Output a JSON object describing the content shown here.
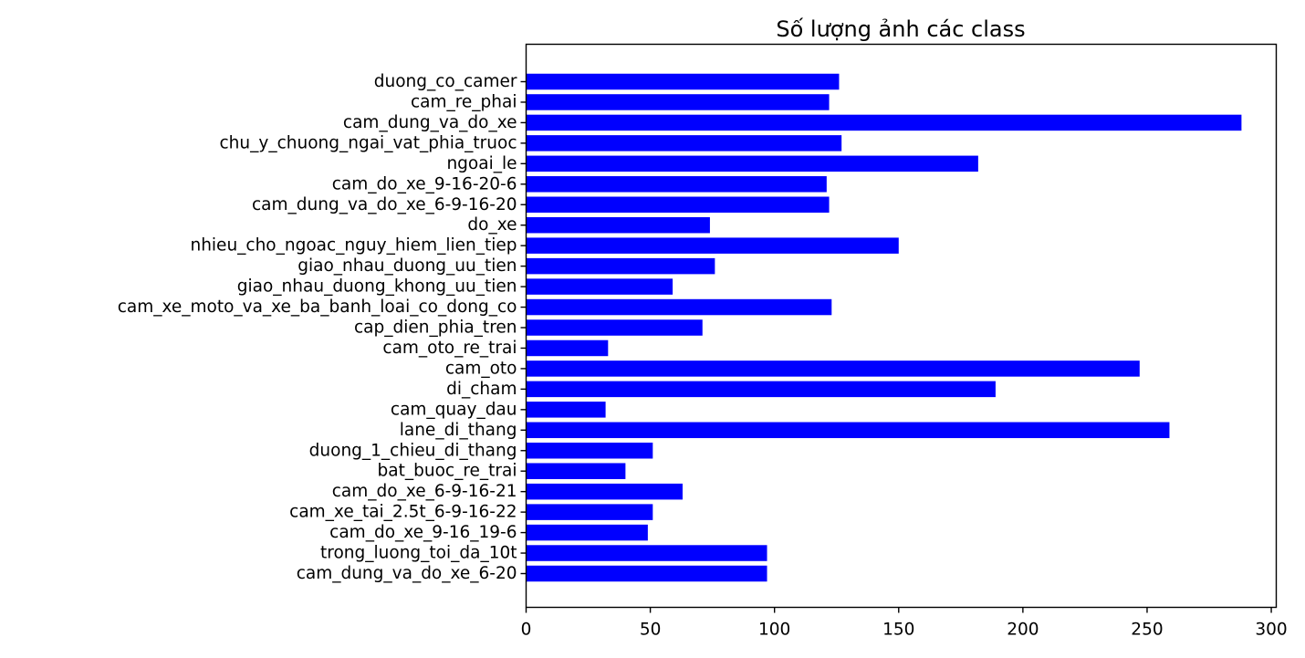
{
  "chart_data": {
    "type": "bar",
    "orientation": "horizontal",
    "title": "Số lượng ảnh các class",
    "xlabel": "",
    "ylabel": "",
    "xlim": [
      0,
      302
    ],
    "xticks": [
      0,
      50,
      100,
      150,
      200,
      250,
      300
    ],
    "grid": false,
    "legend": "none",
    "bar_color": "#0000ff",
    "categories": [
      "duong_co_camer",
      "cam_re_phai",
      "cam_dung_va_do_xe",
      "chu_y_chuong_ngai_vat_phia_truoc",
      "ngoai_le",
      "cam_do_xe_9-16-20-6",
      "cam_dung_va_do_xe_6-9-16-20",
      "do_xe",
      "nhieu_cho_ngoac_nguy_hiem_lien_tiep",
      "giao_nhau_duong_uu_tien",
      "giao_nhau_duong_khong_uu_tien",
      "cam_xe_moto_va_xe_ba_banh_loai_co_dong_co",
      "cap_dien_phia_tren",
      "cam_oto_re_trai",
      "cam_oto",
      "di_cham",
      "cam_quay_dau",
      "lane_di_thang",
      "duong_1_chieu_di_thang",
      "bat_buoc_re_trai",
      "cam_do_xe_6-9-16-21",
      "cam_xe_tai_2.5t_6-9-16-22",
      "cam_do_xe_9-16_19-6",
      "trong_luong_toi_da_10t",
      "cam_dung_va_do_xe_6-20"
    ],
    "values": [
      126,
      122,
      288,
      127,
      182,
      121,
      122,
      74,
      150,
      76,
      59,
      123,
      71,
      33,
      247,
      189,
      32,
      259,
      51,
      40,
      63,
      51,
      49,
      97,
      97
    ]
  }
}
